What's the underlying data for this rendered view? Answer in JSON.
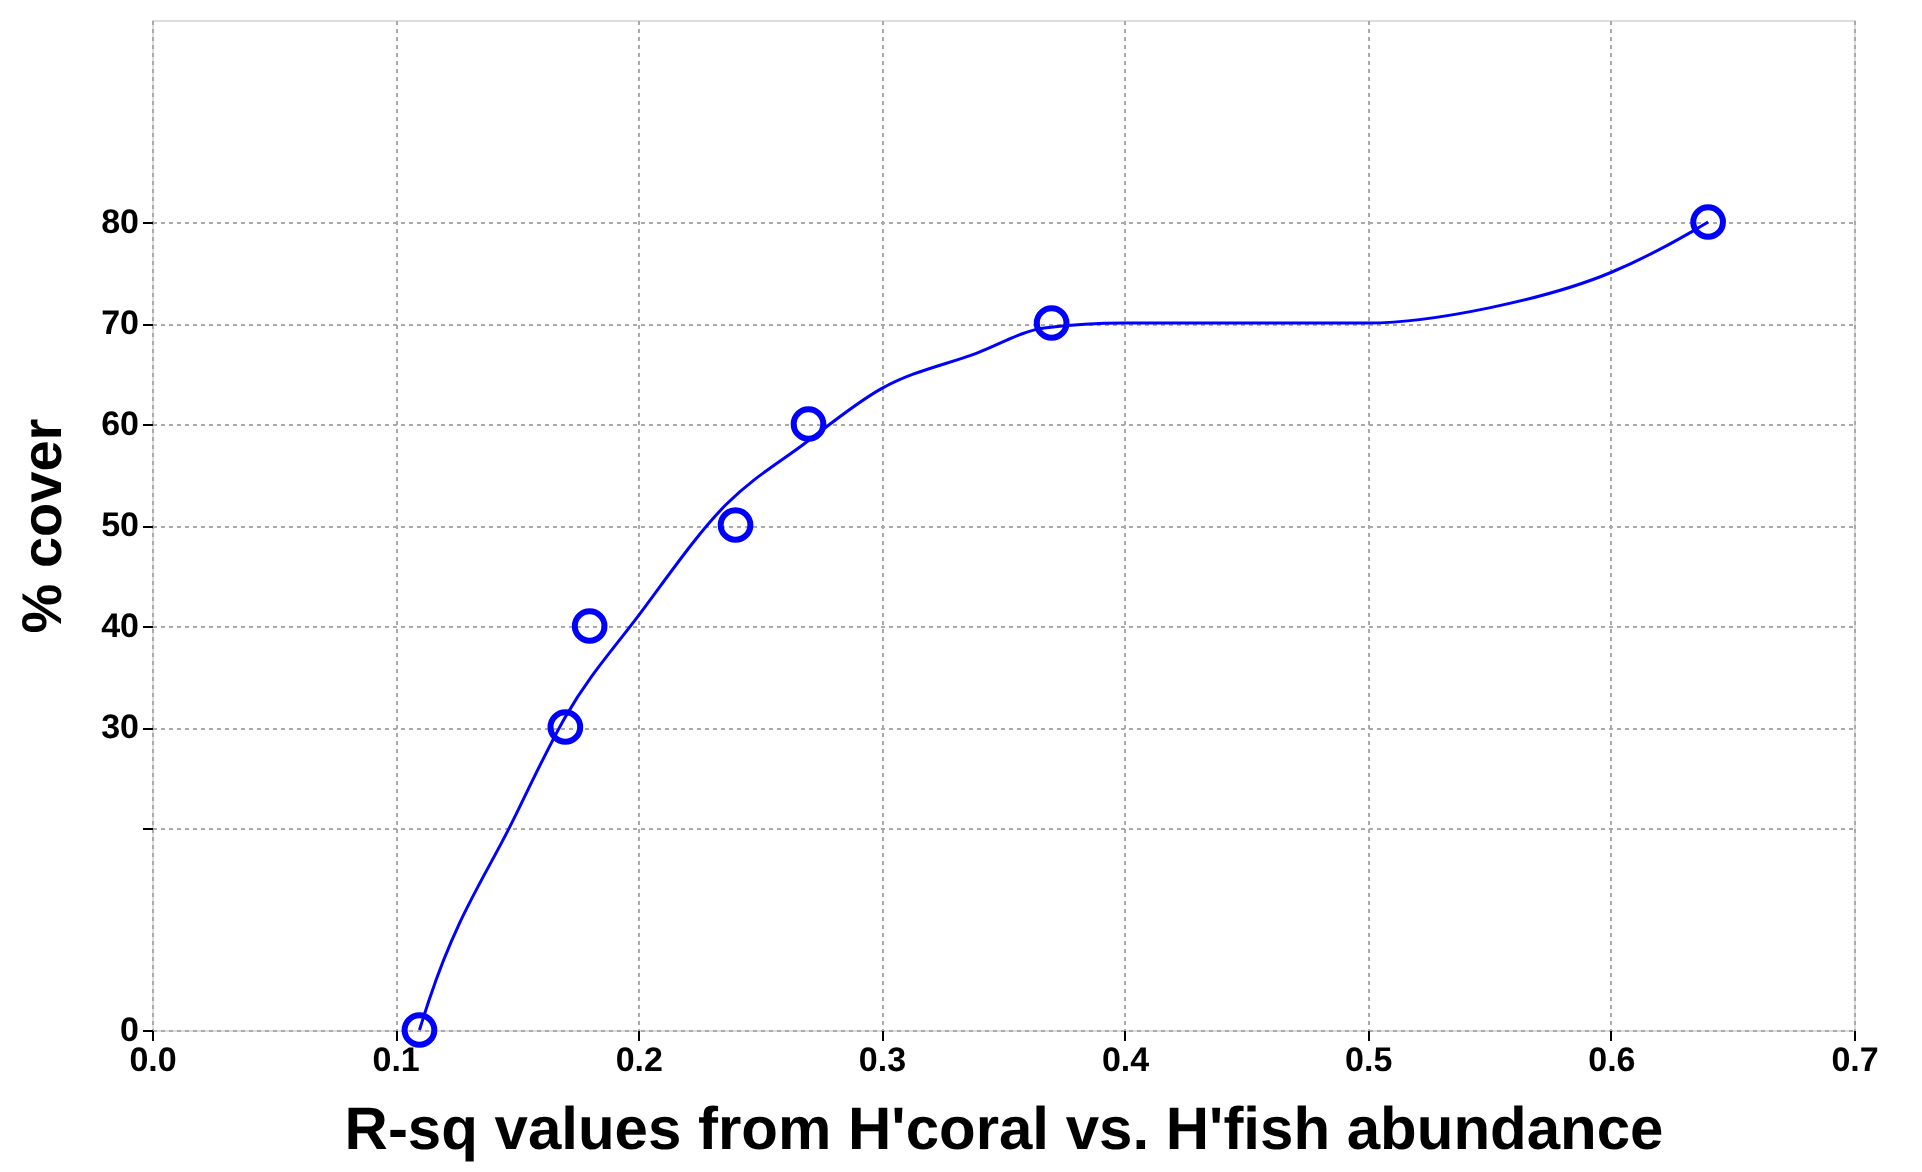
{
  "chart_data": {
    "type": "scatter",
    "xlabel": "R-sq values from H'coral vs. H'fish abundance",
    "ylabel": "% cover",
    "series": [
      {
        "type": "line",
        "color": "#0000ff",
        "marker": "none",
        "line_style": "solid",
        "x": [
          0.11,
          0.114,
          0.149,
          0.17,
          0.2,
          0.236,
          0.268,
          0.3,
          0.339,
          0.367,
          0.4,
          0.5,
          0.55,
          0.6,
          0.633,
          0.64
        ],
        "values": [
          0,
          3,
          21,
          31,
          41,
          52,
          58,
          63.5,
          67,
          69.5,
          70,
          70,
          71.5,
          75,
          79,
          80
        ]
      },
      {
        "color": "#0000ff",
        "marker": "circle",
        "x": [
          0.11,
          0.17,
          0.18,
          0.24,
          0.27,
          0.37,
          0.64
        ],
        "values": [
          0,
          30,
          40,
          50,
          60,
          70,
          80
        ]
      }
    ],
    "xlim": [
      0,
      0.7
    ],
    "xticks": [
      {
        "value": 0,
        "label": "0.0"
      },
      0.1,
      0.2,
      0.3,
      0.4,
      0.5,
      0.6,
      0.7
    ],
    "ylim": [
      0,
      100
    ],
    "yticks": [
      0,
      {
        "value": 20,
        "label": null
      },
      30,
      40,
      50,
      60,
      70,
      80
    ],
    "grid": true
  }
}
